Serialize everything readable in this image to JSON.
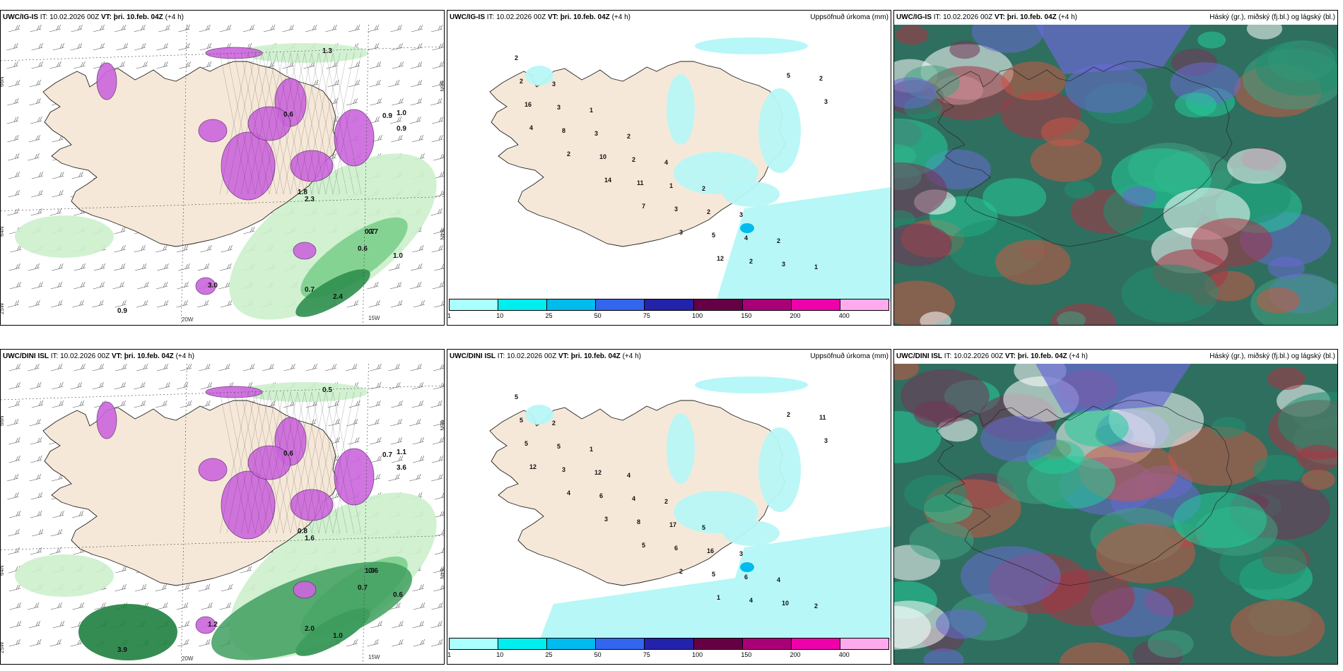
{
  "panels": [
    {
      "id": "r1c1",
      "model": "UWC/IG-IS",
      "it_label": "IT:",
      "it_value": "10.02.2026 00Z",
      "vt_label": "VT:",
      "vt_value": "þri. 10.feb. 04Z",
      "lead": "(+4 h)",
      "right_title": "",
      "type": "precip-rate",
      "grid_labels": [
        "66N",
        "64N",
        "25W",
        "20W",
        "15W",
        "66N",
        "64N"
      ],
      "values": [
        "0.9",
        "0.7",
        "0.6",
        "1.0",
        "0.7",
        "0.7",
        "2.4",
        "0.9",
        "1.0",
        "0.6",
        "1.8",
        "2.3",
        "3.0",
        "1.3",
        "0.9"
      ]
    },
    {
      "id": "r1c2",
      "model": "UWC/IG-IS",
      "it_label": "IT:",
      "it_value": "10.02.2026 00Z",
      "vt_label": "VT:",
      "vt_value": "þri. 10.feb. 04Z",
      "lead": "(+4 h)",
      "right_title": "Uppsöfnuð úrkoma (mm)",
      "type": "accum",
      "values": [
        "2",
        "3",
        "1",
        "2",
        "4",
        "2",
        "3",
        "2",
        "1",
        "2",
        "3",
        "3",
        "2",
        "1",
        "2",
        "4",
        "3",
        "2",
        "16",
        "8",
        "10",
        "11",
        "3",
        "5",
        "2",
        "5",
        "3",
        "4",
        "2",
        "14",
        "7",
        "3",
        "12"
      ]
    },
    {
      "id": "r1c3",
      "model": "UWC/IG-IS",
      "it_label": "IT:",
      "it_value": "10.02.2026 00Z",
      "vt_label": "VT:",
      "vt_value": "þri. 10.feb. 04Z",
      "lead": "(+4 h)",
      "right_title": "Háský (gr.), miðský (fj.bl.) og lágský (bl.)",
      "type": "cloud"
    },
    {
      "id": "r2c1",
      "model": "UWC/DINI ISL",
      "it_label": "IT:",
      "it_value": "10.02.2026 00Z",
      "vt_label": "VT:",
      "vt_value": "þri. 10.feb. 04Z",
      "lead": "(+4 h)",
      "right_title": "",
      "type": "precip-rate",
      "grid_labels": [
        "66N",
        "64N",
        "25W",
        "20W",
        "15W",
        "66N",
        "64N"
      ],
      "values": [
        "3.9",
        "1.3",
        "0.7",
        "0.6",
        "0.6",
        "2.0",
        "1.0",
        "0.7",
        "1.1",
        "0.6",
        "0.8",
        "1.6",
        "1.2",
        "0.5",
        "3.6"
      ]
    },
    {
      "id": "r2c2",
      "model": "UWC/DINI ISL",
      "it_label": "IT:",
      "it_value": "10.02.2026 00Z",
      "vt_label": "VT:",
      "vt_value": "þri. 10.feb. 04Z",
      "lead": "(+4 h)",
      "right_title": "Uppsöfnuð úrkoma (mm)",
      "type": "accum",
      "values": [
        "5",
        "2",
        "1",
        "4",
        "2",
        "5",
        "3",
        "4",
        "2",
        "5",
        "5",
        "12",
        "4",
        "17",
        "16",
        "6",
        "10",
        "11",
        "5",
        "3",
        "6",
        "8",
        "6",
        "5",
        "4",
        "2",
        "3",
        "12",
        "4",
        "3",
        "5",
        "2",
        "1"
      ]
    },
    {
      "id": "r2c3",
      "model": "UWC/DINI ISL",
      "it_label": "IT:",
      "it_value": "10.02.2026 00Z",
      "vt_label": "VT:",
      "vt_value": "þri. 10.feb. 04Z",
      "lead": "(+4 h)",
      "right_title": "Háský (gr.), miðský (fj.bl.) og lágský (bl.)",
      "type": "cloud"
    }
  ],
  "colorbar": {
    "colors": [
      "#aaffff",
      "#00eeee",
      "#00bbee",
      "#3366ee",
      "#2222aa",
      "#660044",
      "#aa0077",
      "#ee00aa",
      "#ffaaee"
    ],
    "ticks": [
      "1",
      "10",
      "25",
      "50",
      "75",
      "100",
      "150",
      "200",
      "400"
    ]
  },
  "colors": {
    "land": "#f6e8d8",
    "sea_light": "#d9f5d9",
    "precip_purple": "#cc66dd",
    "accum_cyan": "#b7f7f7"
  }
}
